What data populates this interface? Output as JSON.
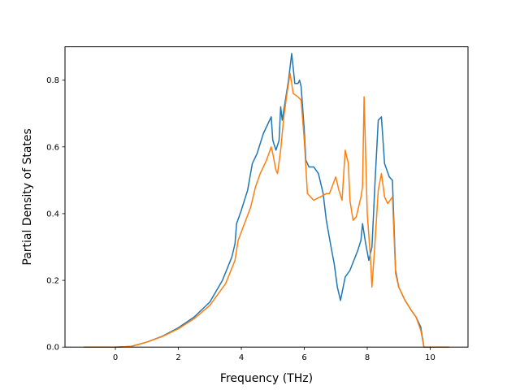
{
  "chart_data": {
    "type": "line",
    "title": "",
    "xlabel": "Frequency (THz)",
    "ylabel": "Partial Density of States",
    "xlim": [
      -1.6,
      11.2
    ],
    "ylim": [
      0.0,
      0.9
    ],
    "x_ticks": [
      0,
      2,
      4,
      6,
      8,
      10
    ],
    "y_ticks": [
      0.0,
      0.2,
      0.4,
      0.6,
      0.8
    ],
    "x_tick_labels": [
      "0",
      "2",
      "4",
      "6",
      "8",
      "10"
    ],
    "y_tick_labels": [
      "0.0",
      "0.2",
      "0.4",
      "0.6",
      "0.8"
    ],
    "grid": false,
    "legend": "none",
    "series": [
      {
        "color": "#1f77b4",
        "points": [
          [
            -1.0,
            0.0
          ],
          [
            0.0,
            0.0
          ],
          [
            0.5,
            0.002
          ],
          [
            1.0,
            0.015
          ],
          [
            1.5,
            0.033
          ],
          [
            2.0,
            0.058
          ],
          [
            2.5,
            0.09
          ],
          [
            3.0,
            0.135
          ],
          [
            3.4,
            0.2
          ],
          [
            3.7,
            0.27
          ],
          [
            3.8,
            0.31
          ],
          [
            3.85,
            0.37
          ],
          [
            4.0,
            0.41
          ],
          [
            4.2,
            0.47
          ],
          [
            4.35,
            0.55
          ],
          [
            4.5,
            0.58
          ],
          [
            4.7,
            0.64
          ],
          [
            4.95,
            0.69
          ],
          [
            5.0,
            0.62
          ],
          [
            5.1,
            0.59
          ],
          [
            5.2,
            0.62
          ],
          [
            5.25,
            0.72
          ],
          [
            5.3,
            0.68
          ],
          [
            5.5,
            0.8
          ],
          [
            5.6,
            0.88
          ],
          [
            5.7,
            0.79
          ],
          [
            5.8,
            0.79
          ],
          [
            5.85,
            0.8
          ],
          [
            5.9,
            0.78
          ],
          [
            6.0,
            0.65
          ],
          [
            6.05,
            0.56
          ],
          [
            6.15,
            0.54
          ],
          [
            6.3,
            0.54
          ],
          [
            6.45,
            0.52
          ],
          [
            6.6,
            0.46
          ],
          [
            6.7,
            0.38
          ],
          [
            6.85,
            0.3
          ],
          [
            6.95,
            0.25
          ],
          [
            7.05,
            0.18
          ],
          [
            7.15,
            0.14
          ],
          [
            7.3,
            0.21
          ],
          [
            7.45,
            0.23
          ],
          [
            7.7,
            0.29
          ],
          [
            7.8,
            0.32
          ],
          [
            7.85,
            0.37
          ],
          [
            7.95,
            0.31
          ],
          [
            8.05,
            0.26
          ],
          [
            8.15,
            0.3
          ],
          [
            8.25,
            0.5
          ],
          [
            8.35,
            0.68
          ],
          [
            8.45,
            0.69
          ],
          [
            8.55,
            0.55
          ],
          [
            8.7,
            0.51
          ],
          [
            8.8,
            0.5
          ],
          [
            8.9,
            0.23
          ],
          [
            9.0,
            0.18
          ],
          [
            9.2,
            0.14
          ],
          [
            9.4,
            0.11
          ],
          [
            9.55,
            0.09
          ],
          [
            9.7,
            0.06
          ],
          [
            9.8,
            0.0
          ],
          [
            10.0,
            0.0
          ],
          [
            10.6,
            0.0
          ]
        ]
      },
      {
        "color": "#ff7f0e",
        "points": [
          [
            -1.0,
            0.0
          ],
          [
            0.0,
            0.0
          ],
          [
            0.5,
            0.002
          ],
          [
            1.0,
            0.015
          ],
          [
            1.5,
            0.032
          ],
          [
            2.0,
            0.055
          ],
          [
            2.5,
            0.085
          ],
          [
            3.0,
            0.125
          ],
          [
            3.5,
            0.19
          ],
          [
            3.8,
            0.26
          ],
          [
            3.9,
            0.32
          ],
          [
            4.1,
            0.37
          ],
          [
            4.3,
            0.42
          ],
          [
            4.45,
            0.48
          ],
          [
            4.6,
            0.52
          ],
          [
            4.8,
            0.56
          ],
          [
            4.95,
            0.6
          ],
          [
            5.0,
            0.58
          ],
          [
            5.1,
            0.53
          ],
          [
            5.15,
            0.52
          ],
          [
            5.25,
            0.59
          ],
          [
            5.35,
            0.69
          ],
          [
            5.45,
            0.76
          ],
          [
            5.55,
            0.82
          ],
          [
            5.65,
            0.76
          ],
          [
            5.8,
            0.75
          ],
          [
            5.9,
            0.74
          ],
          [
            6.0,
            0.62
          ],
          [
            6.1,
            0.46
          ],
          [
            6.3,
            0.44
          ],
          [
            6.5,
            0.45
          ],
          [
            6.7,
            0.46
          ],
          [
            6.8,
            0.46
          ],
          [
            7.0,
            0.51
          ],
          [
            7.1,
            0.47
          ],
          [
            7.2,
            0.44
          ],
          [
            7.3,
            0.59
          ],
          [
            7.4,
            0.55
          ],
          [
            7.45,
            0.44
          ],
          [
            7.55,
            0.38
          ],
          [
            7.65,
            0.39
          ],
          [
            7.8,
            0.45
          ],
          [
            7.85,
            0.48
          ],
          [
            7.9,
            0.75
          ],
          [
            8.0,
            0.4
          ],
          [
            8.1,
            0.27
          ],
          [
            8.15,
            0.18
          ],
          [
            8.25,
            0.32
          ],
          [
            8.35,
            0.47
          ],
          [
            8.45,
            0.52
          ],
          [
            8.55,
            0.45
          ],
          [
            8.65,
            0.43
          ],
          [
            8.8,
            0.45
          ],
          [
            8.9,
            0.22
          ],
          [
            9.0,
            0.18
          ],
          [
            9.2,
            0.14
          ],
          [
            9.4,
            0.11
          ],
          [
            9.55,
            0.09
          ],
          [
            9.7,
            0.05
          ],
          [
            9.8,
            0.0
          ],
          [
            10.0,
            0.0
          ],
          [
            10.6,
            0.0
          ]
        ]
      }
    ]
  }
}
